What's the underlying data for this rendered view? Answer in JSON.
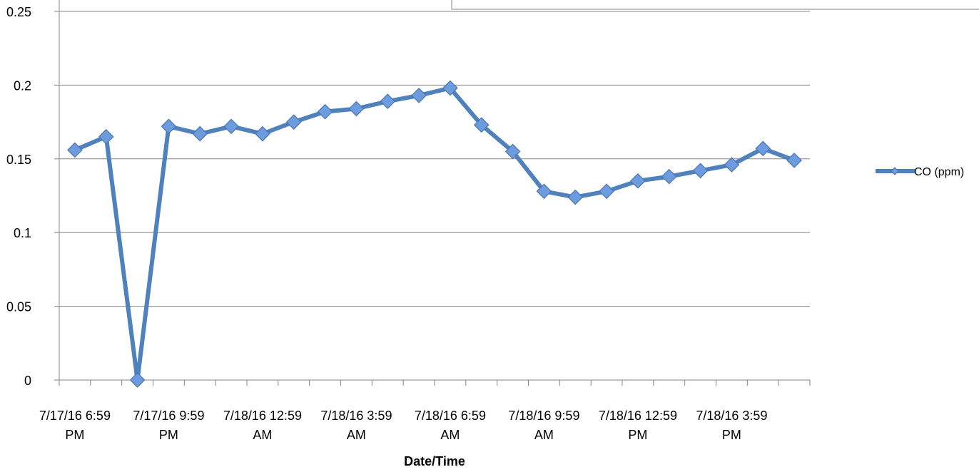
{
  "chart_data": {
    "type": "line",
    "title": "",
    "xlabel": "Date/Time",
    "ylabel": "",
    "ylim": [
      0,
      0.25
    ],
    "y_ticks": [
      "0",
      "0.05",
      "0.1",
      "0.15",
      "0.2",
      "0.25"
    ],
    "grid": true,
    "legend_position": "right",
    "x_tick_labels": [
      [
        "7/17/16 6:59",
        "PM"
      ],
      [
        "7/17/16 9:59",
        "PM"
      ],
      [
        "7/18/16 12:59",
        "AM"
      ],
      [
        "7/18/16 3:59",
        "AM"
      ],
      [
        "7/18/16 6:59",
        "AM"
      ],
      [
        "7/18/16 9:59",
        "AM"
      ],
      [
        "7/18/16 12:59",
        "PM"
      ],
      [
        "7/18/16 3:59",
        "PM"
      ]
    ],
    "series": [
      {
        "name": "CO (ppm)",
        "color": "#4f81bd",
        "marker_color": "#6d9be0",
        "values": [
          0.156,
          0.165,
          0,
          0.172,
          0.167,
          0.172,
          0.167,
          0.175,
          0.182,
          0.184,
          0.189,
          0.193,
          0.198,
          0.173,
          0.155,
          0.128,
          0.124,
          0.128,
          0.135,
          0.138,
          0.142,
          0.146,
          0.157,
          0.149
        ]
      }
    ]
  }
}
